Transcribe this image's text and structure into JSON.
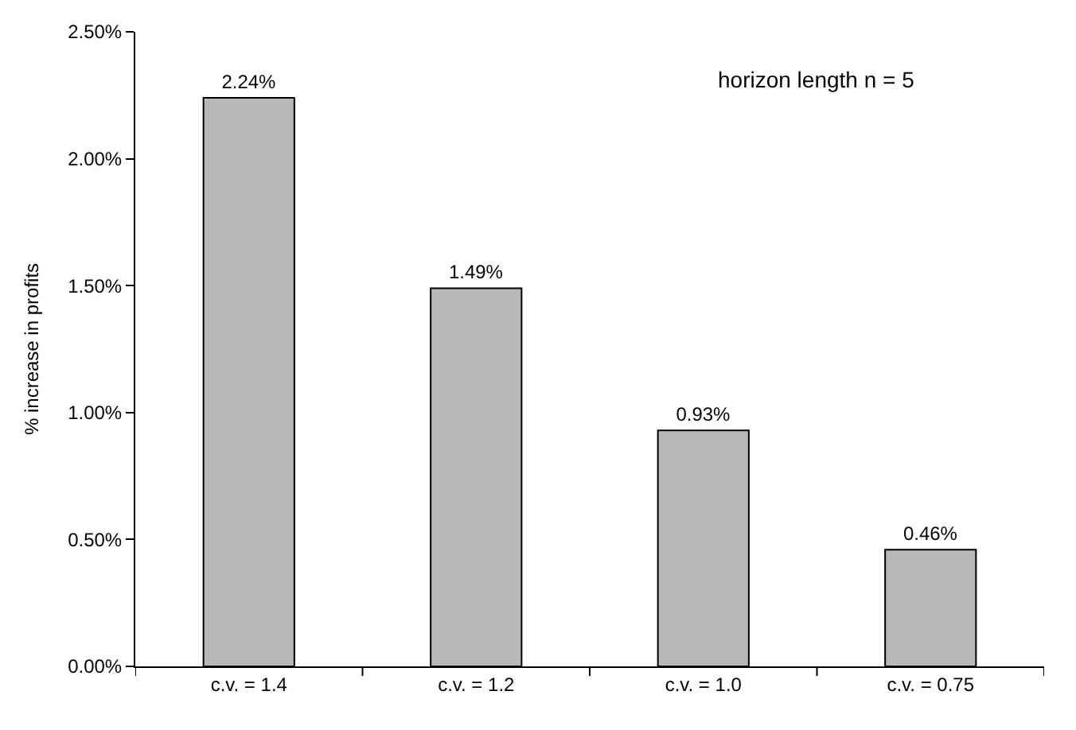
{
  "chart_data": {
    "type": "bar",
    "categories": [
      "c.v. = 1.4",
      "c.v. = 1.2",
      "c.v. = 1.0",
      "c.v. = 0.75"
    ],
    "values": [
      2.24,
      1.49,
      0.93,
      0.46
    ],
    "value_labels": [
      "2.24%",
      "1.49%",
      "0.93%",
      "0.46%"
    ],
    "color": "#b8b8b8",
    "ylabel": "% increase in profits",
    "ylim": [
      0,
      2.5
    ],
    "yticks": [
      {
        "value": 0,
        "label": "0.00%"
      },
      {
        "value": 0.5,
        "label": "0.50%"
      },
      {
        "value": 1.0,
        "label": "1.00%"
      },
      {
        "value": 1.5,
        "label": "1.50%"
      },
      {
        "value": 2.0,
        "label": "2.00%"
      },
      {
        "value": 2.5,
        "label": "2.50%"
      }
    ],
    "annotations": [
      "horizon length n = 5"
    ]
  }
}
